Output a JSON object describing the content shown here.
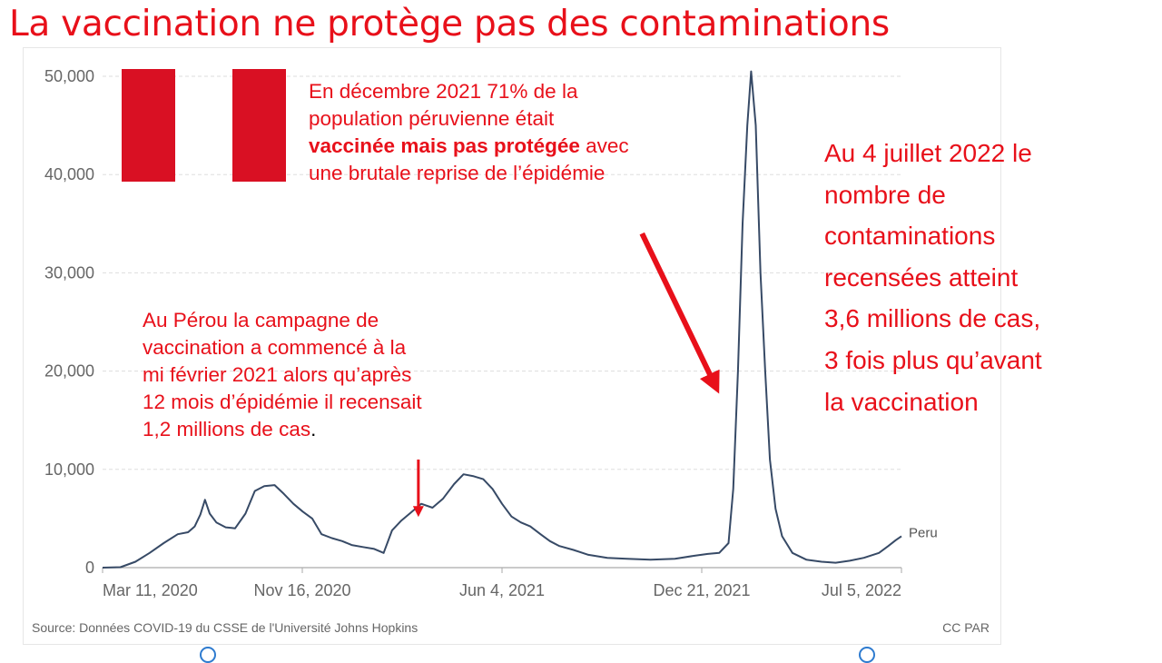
{
  "slide": {
    "title": "La vaccination ne protège pas des contaminations"
  },
  "notes": {
    "december": {
      "line1": "En décembre 2021 71% de la",
      "line2": "population péruvienne était",
      "line3_bold": "vaccinée mais pas protégée",
      "line3_rest": " avec",
      "line4": "une brutale reprise de l’épidémie"
    },
    "february": {
      "line1": "Au Pérou la campagne de",
      "line2": "vaccination a commencé à la",
      "line3": "mi février 2021 alors qu’après",
      "line4": "12 mois d’épidémie il recensait",
      "line5": "1,2 millions de cas",
      "line5_end": "."
    },
    "july": {
      "line1": "Au 4 juillet  2022 le",
      "line2": "nombre de",
      "line3": "contaminations",
      "line4": "recensées  atteint",
      "line5": "3,6 millions de cas,",
      "line6": "3  fois plus qu’avant",
      "line7": "la vaccination"
    }
  },
  "footer": {
    "source": "Source: Données COVID-19 du CSSE de l'Université Johns Hopkins",
    "license": "CC PAR"
  },
  "colors": {
    "accent_red": "#e8101a",
    "flag_red": "#d91023",
    "series": "#374a66",
    "grid": "#dddddd"
  },
  "chart_data": {
    "type": "line",
    "title": "",
    "xlabel": "",
    "ylabel": "",
    "x_ticks": [
      "Mar 11, 2020",
      "Nov 16, 2020",
      "Jun 4, 2021",
      "Dec 21, 2021",
      "Jul 5, 2022"
    ],
    "x_range": [
      "2020-03-06",
      "2022-07-04"
    ],
    "ylim": [
      0,
      50000
    ],
    "y_ticks": [
      0,
      10000,
      20000,
      30000,
      40000,
      50000
    ],
    "y_tick_labels": [
      "0",
      "10,000",
      "20,000",
      "30,000",
      "40,000",
      "50,000"
    ],
    "grid": true,
    "series": [
      {
        "name": "Peru",
        "color": "#374a66",
        "points": [
          [
            "2020-03-06",
            0
          ],
          [
            "2020-03-25",
            50
          ],
          [
            "2020-04-10",
            600
          ],
          [
            "2020-04-25",
            1500
          ],
          [
            "2020-05-10",
            2500
          ],
          [
            "2020-05-25",
            3400
          ],
          [
            "2020-06-05",
            3600
          ],
          [
            "2020-06-12",
            4200
          ],
          [
            "2020-06-18",
            5400
          ],
          [
            "2020-06-23",
            6900
          ],
          [
            "2020-06-28",
            5500
          ],
          [
            "2020-07-05",
            4600
          ],
          [
            "2020-07-15",
            4100
          ],
          [
            "2020-07-25",
            4000
          ],
          [
            "2020-08-05",
            5500
          ],
          [
            "2020-08-15",
            7800
          ],
          [
            "2020-08-25",
            8300
          ],
          [
            "2020-09-05",
            8400
          ],
          [
            "2020-09-15",
            7500
          ],
          [
            "2020-09-25",
            6500
          ],
          [
            "2020-10-05",
            5700
          ],
          [
            "2020-10-15",
            5000
          ],
          [
            "2020-10-25",
            3400
          ],
          [
            "2020-11-05",
            3000
          ],
          [
            "2020-11-16",
            2700
          ],
          [
            "2020-11-26",
            2300
          ],
          [
            "2020-12-08",
            2100
          ],
          [
            "2020-12-20",
            1900
          ],
          [
            "2020-12-30",
            1500
          ],
          [
            "2021-01-08",
            3800
          ],
          [
            "2021-01-18",
            4800
          ],
          [
            "2021-01-28",
            5600
          ],
          [
            "2021-02-08",
            6500
          ],
          [
            "2021-02-20",
            6100
          ],
          [
            "2021-03-03",
            7000
          ],
          [
            "2021-03-15",
            8500
          ],
          [
            "2021-03-25",
            9500
          ],
          [
            "2021-04-05",
            9300
          ],
          [
            "2021-04-15",
            9000
          ],
          [
            "2021-04-25",
            8000
          ],
          [
            "2021-05-05",
            6500
          ],
          [
            "2021-05-15",
            5200
          ],
          [
            "2021-05-25",
            4600
          ],
          [
            "2021-06-04",
            4200
          ],
          [
            "2021-06-15",
            3400
          ],
          [
            "2021-06-25",
            2700
          ],
          [
            "2021-07-05",
            2200
          ],
          [
            "2021-07-20",
            1800
          ],
          [
            "2021-08-05",
            1300
          ],
          [
            "2021-08-25",
            1000
          ],
          [
            "2021-09-15",
            900
          ],
          [
            "2021-10-10",
            800
          ],
          [
            "2021-11-05",
            900
          ],
          [
            "2021-11-25",
            1200
          ],
          [
            "2021-12-10",
            1400
          ],
          [
            "2021-12-22",
            1500
          ],
          [
            "2022-01-01",
            2500
          ],
          [
            "2022-01-06",
            8000
          ],
          [
            "2022-01-11",
            20000
          ],
          [
            "2022-01-16",
            35000
          ],
          [
            "2022-01-21",
            45000
          ],
          [
            "2022-01-25",
            50500
          ],
          [
            "2022-01-30",
            45000
          ],
          [
            "2022-02-04",
            30000
          ],
          [
            "2022-02-09",
            20000
          ],
          [
            "2022-02-14",
            11000
          ],
          [
            "2022-02-20",
            6000
          ],
          [
            "2022-02-27",
            3200
          ],
          [
            "2022-03-10",
            1500
          ],
          [
            "2022-03-25",
            800
          ],
          [
            "2022-04-10",
            600
          ],
          [
            "2022-04-25",
            500
          ],
          [
            "2022-05-10",
            700
          ],
          [
            "2022-05-25",
            1000
          ],
          [
            "2022-06-10",
            1500
          ],
          [
            "2022-06-20",
            2200
          ],
          [
            "2022-06-28",
            2800
          ],
          [
            "2022-07-04",
            3200
          ]
        ]
      }
    ],
    "annotations": [
      {
        "type": "arrow",
        "from": [
          "2021-10-01",
          34000
        ],
        "to": [
          "2021-12-18",
          18500
        ],
        "color": "#e8101a"
      },
      {
        "type": "arrow",
        "from": [
          "2021-02-05",
          11000
        ],
        "to": [
          "2021-02-05",
          5600
        ],
        "color": "#e8101a"
      }
    ]
  }
}
